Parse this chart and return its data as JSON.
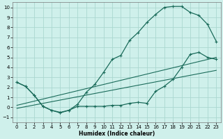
{
  "xlabel": "Humidex (Indice chaleur)",
  "bg_color": "#cff0eb",
  "grid_color": "#aad8d0",
  "line_color": "#1a6b5a",
  "xlim": [
    -0.5,
    23.5
  ],
  "ylim": [
    -1.5,
    10.5
  ],
  "xticks": [
    0,
    1,
    2,
    3,
    4,
    5,
    6,
    7,
    8,
    9,
    10,
    11,
    12,
    13,
    14,
    15,
    16,
    17,
    18,
    19,
    20,
    21,
    22,
    23
  ],
  "yticks": [
    -1,
    0,
    1,
    2,
    3,
    4,
    5,
    6,
    7,
    8,
    9,
    10
  ],
  "curve1_x": [
    0,
    1,
    2,
    3,
    4,
    5,
    6,
    7,
    8,
    9,
    10,
    11,
    12,
    13,
    14,
    15,
    16,
    17,
    18,
    19,
    20,
    21,
    22,
    23
  ],
  "curve1_y": [
    2.5,
    2.1,
    1.2,
    0.1,
    -0.3,
    -0.5,
    -0.3,
    0.3,
    1.5,
    2.3,
    3.5,
    4.8,
    5.2,
    6.7,
    7.5,
    8.5,
    9.3,
    10.0,
    10.1,
    10.1,
    9.5,
    9.2,
    8.3,
    6.6
  ],
  "curve2_x": [
    0,
    1,
    2,
    3,
    4,
    5,
    6,
    7,
    8,
    9,
    10,
    11,
    12,
    13,
    14,
    15,
    16,
    17,
    18,
    19,
    20,
    21,
    22,
    23
  ],
  "curve2_y": [
    2.5,
    2.1,
    1.2,
    0.1,
    -0.3,
    -0.55,
    -0.3,
    0.1,
    0.1,
    0.1,
    0.1,
    0.2,
    0.2,
    0.4,
    0.5,
    0.4,
    1.6,
    2.1,
    2.8,
    4.0,
    5.3,
    5.5,
    5.0,
    4.8
  ],
  "line1_x": [
    0,
    23
  ],
  "line1_y": [
    0.2,
    5.0
  ],
  "line2_x": [
    0,
    23
  ],
  "line2_y": [
    -0.1,
    3.7
  ],
  "tick_fontsize": 5,
  "xlabel_fontsize": 5.5
}
